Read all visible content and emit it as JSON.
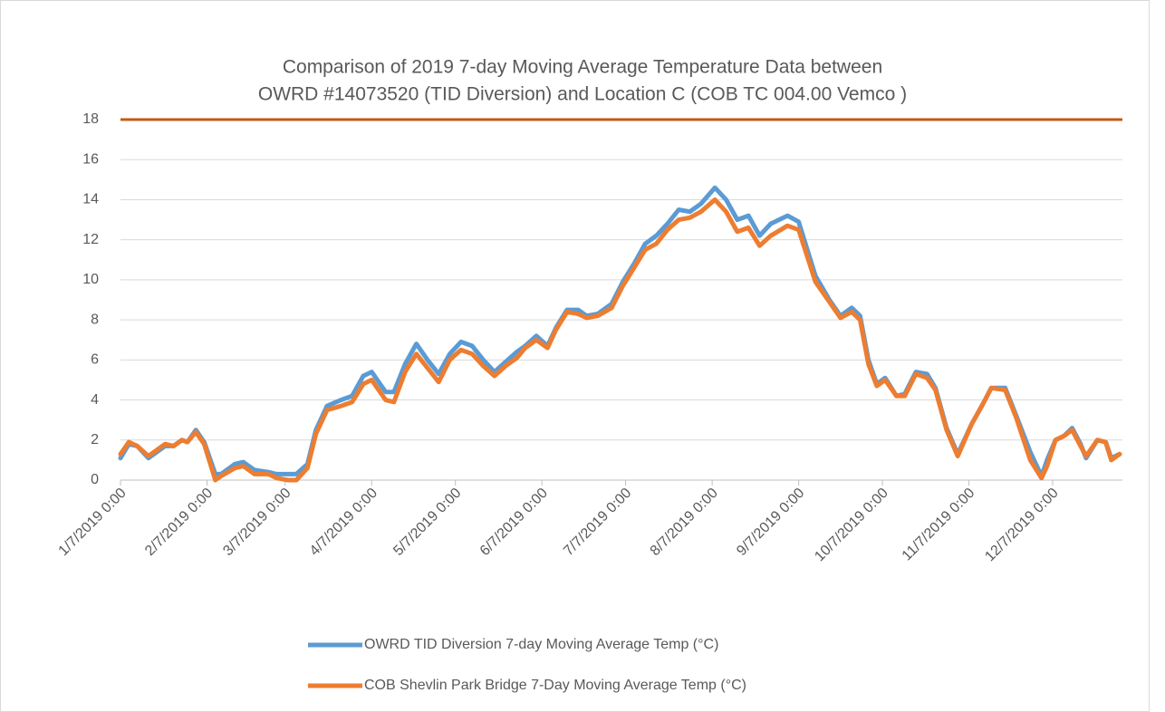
{
  "chart_data": {
    "type": "line",
    "title": [
      "Comparison of 2019 7-day Moving Average Temperature Data between",
      "OWRD #14073520 (TID Diversion) and Location C (COB TC 004.00 Vemco )"
    ],
    "x": [
      "2019-01-07",
      "2019-01-10",
      "2019-01-13",
      "2019-01-17",
      "2019-01-23",
      "2019-01-26",
      "2019-01-29",
      "2019-01-31",
      "2019-02-03",
      "2019-02-06",
      "2019-02-10",
      "2019-02-12",
      "2019-02-17",
      "2019-02-20",
      "2019-02-24",
      "2019-03-01",
      "2019-03-04",
      "2019-03-08",
      "2019-03-11",
      "2019-03-15",
      "2019-03-18",
      "2019-03-22",
      "2019-03-27",
      "2019-03-31",
      "2019-04-04",
      "2019-04-07",
      "2019-04-12",
      "2019-04-15",
      "2019-04-19",
      "2019-04-23",
      "2019-04-27",
      "2019-05-01",
      "2019-05-05",
      "2019-05-09",
      "2019-05-13",
      "2019-05-17",
      "2019-05-21",
      "2019-05-25",
      "2019-05-29",
      "2019-06-01",
      "2019-06-05",
      "2019-06-09",
      "2019-06-12",
      "2019-06-16",
      "2019-06-20",
      "2019-06-23",
      "2019-06-27",
      "2019-07-02",
      "2019-07-06",
      "2019-07-10",
      "2019-07-14",
      "2019-07-18",
      "2019-07-22",
      "2019-07-26",
      "2019-07-30",
      "2019-08-03",
      "2019-08-08",
      "2019-08-12",
      "2019-08-16",
      "2019-08-20",
      "2019-08-24",
      "2019-08-28",
      "2019-09-03",
      "2019-09-07",
      "2019-09-13",
      "2019-09-18",
      "2019-09-22",
      "2019-09-26",
      "2019-09-29",
      "2019-10-02",
      "2019-10-05",
      "2019-10-08",
      "2019-10-12",
      "2019-10-15",
      "2019-10-19",
      "2019-10-23",
      "2019-10-26",
      "2019-10-30",
      "2019-11-03",
      "2019-11-08",
      "2019-11-12",
      "2019-11-15",
      "2019-11-20",
      "2019-11-24",
      "2019-11-29",
      "2019-12-03",
      "2019-12-05",
      "2019-12-08",
      "2019-12-11",
      "2019-12-14",
      "2019-12-17",
      "2019-12-19",
      "2019-12-23",
      "2019-12-26",
      "2019-12-28",
      "2019-12-31"
    ],
    "series": [
      {
        "name": "OWRD TID Diversion 7-day Moving Average Temp (°C)",
        "color": "#5b9bd5",
        "values": [
          1.1,
          1.8,
          1.7,
          1.1,
          1.7,
          1.7,
          2.0,
          1.9,
          2.5,
          1.9,
          0.3,
          0.3,
          0.8,
          0.9,
          0.5,
          0.4,
          0.3,
          0.3,
          0.3,
          0.8,
          2.5,
          3.7,
          4.0,
          4.2,
          5.2,
          5.4,
          4.4,
          4.4,
          5.8,
          6.8,
          6.0,
          5.3,
          6.3,
          6.9,
          6.7,
          6.0,
          5.4,
          5.9,
          6.4,
          6.7,
          7.2,
          6.7,
          7.6,
          8.5,
          8.5,
          8.2,
          8.3,
          8.8,
          9.9,
          10.8,
          11.8,
          12.2,
          12.8,
          13.5,
          13.4,
          13.8,
          14.6,
          14.0,
          13.0,
          13.2,
          12.2,
          12.8,
          13.2,
          12.9,
          10.2,
          9.0,
          8.2,
          8.6,
          8.2,
          6.0,
          4.8,
          5.1,
          4.2,
          4.3,
          5.4,
          5.3,
          4.6,
          2.6,
          1.3,
          2.8,
          3.8,
          4.6,
          4.6,
          3.2,
          1.4,
          0.2,
          1.0,
          2.0,
          2.2,
          2.6,
          1.8,
          1.1,
          2.0,
          1.9,
          1.1,
          1.3
        ]
      },
      {
        "name": "COB Shevlin Park Bridge 7-Day Moving Average Temp (°C)",
        "color": "#ed7d31",
        "values": [
          1.3,
          1.9,
          1.7,
          1.2,
          1.8,
          1.7,
          2.0,
          1.9,
          2.4,
          1.8,
          0.0,
          0.2,
          0.6,
          0.7,
          0.3,
          0.3,
          0.1,
          0.0,
          0.0,
          0.6,
          2.3,
          3.5,
          3.7,
          3.9,
          4.8,
          5.0,
          4.0,
          3.9,
          5.4,
          6.3,
          5.6,
          4.9,
          6.0,
          6.5,
          6.3,
          5.7,
          5.2,
          5.7,
          6.1,
          6.6,
          7.0,
          6.6,
          7.5,
          8.4,
          8.3,
          8.1,
          8.2,
          8.6,
          9.7,
          10.6,
          11.5,
          11.8,
          12.5,
          13.0,
          13.1,
          13.4,
          14.0,
          13.4,
          12.4,
          12.6,
          11.7,
          12.2,
          12.7,
          12.5,
          9.9,
          8.9,
          8.1,
          8.4,
          8.0,
          5.8,
          4.7,
          5.0,
          4.2,
          4.2,
          5.3,
          5.1,
          4.5,
          2.5,
          1.2,
          2.8,
          3.8,
          4.6,
          4.5,
          3.1,
          1.0,
          0.1,
          0.7,
          2.0,
          2.2,
          2.5,
          1.7,
          1.2,
          2.0,
          1.9,
          1.0,
          1.3
        ]
      }
    ],
    "reference_lines": [
      {
        "value": 18,
        "color": "#c55a11"
      }
    ],
    "xlim": [
      "2019-01-07",
      "2020-01-01"
    ],
    "xticks": [
      {
        "value": "2019-01-07",
        "label": "1/7/2019 0:00"
      },
      {
        "value": "2019-02-07",
        "label": "2/7/2019 0:00"
      },
      {
        "value": "2019-03-07",
        "label": "3/7/2019 0:00"
      },
      {
        "value": "2019-04-07",
        "label": "4/7/2019 0:00"
      },
      {
        "value": "2019-05-07",
        "label": "5/7/2019 0:00"
      },
      {
        "value": "2019-06-07",
        "label": "6/7/2019 0:00"
      },
      {
        "value": "2019-07-07",
        "label": "7/7/2019 0:00"
      },
      {
        "value": "2019-08-07",
        "label": "8/7/2019 0:00"
      },
      {
        "value": "2019-09-07",
        "label": "9/7/2019 0:00"
      },
      {
        "value": "2019-10-07",
        "label": "10/7/2019 0:00"
      },
      {
        "value": "2019-11-07",
        "label": "11/7/2019 0:00"
      },
      {
        "value": "2019-12-07",
        "label": "12/7/2019 0:00"
      }
    ],
    "ylim": [
      0,
      18
    ],
    "yticks": [
      0,
      2,
      4,
      6,
      8,
      10,
      12,
      14,
      16,
      18
    ],
    "grid": true
  }
}
